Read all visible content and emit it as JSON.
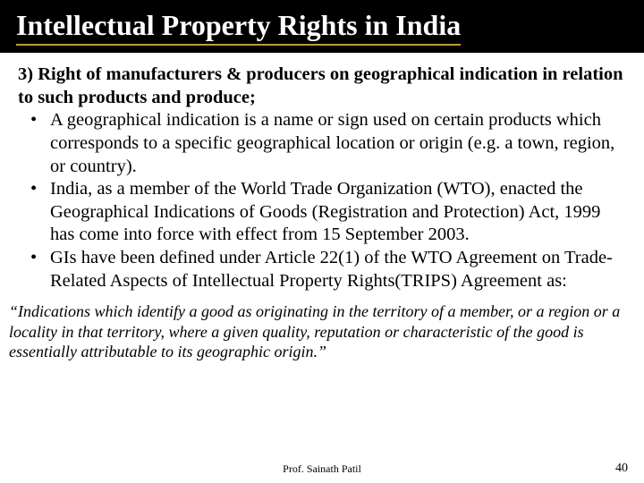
{
  "title": "Intellectual Property Rights in India",
  "intro": "3) Right of manufacturers & producers on geographical indication in relation to such products and produce;",
  "bullets": [
    "A geographical indication is a name or sign used on certain products which corresponds to a specific geographical location or origin (e.g. a town, region, or country).",
    "India, as a member of the World Trade Organization (WTO), enacted the Geographical Indications of Goods (Registration and Protection) Act, 1999 has come into force with effect from 15 September 2003.",
    "GIs have been defined under Article 22(1) of the WTO Agreement on Trade-Related Aspects of Intellectual Property Rights(TRIPS) Agreement as:"
  ],
  "quote": "“Indications which identify a good as originating in the territory of a member, or a region or a locality in that territory, where a given quality, reputation or characteristic of the good is essentially attributable to its geographic origin.”",
  "footer_center": "Prof. Sainath Patil",
  "page_number": "40",
  "colors": {
    "title_bg": "#000000",
    "title_fg": "#ffffff",
    "underline": "#c19a3f",
    "body_bg": "#ffffff",
    "body_fg": "#000000"
  },
  "typography": {
    "title_fontsize": 32,
    "body_fontsize": 20.5,
    "quote_fontsize": 18,
    "footer_fontsize": 12,
    "page_number_fontsize": 14,
    "font_family": "Times New Roman"
  }
}
